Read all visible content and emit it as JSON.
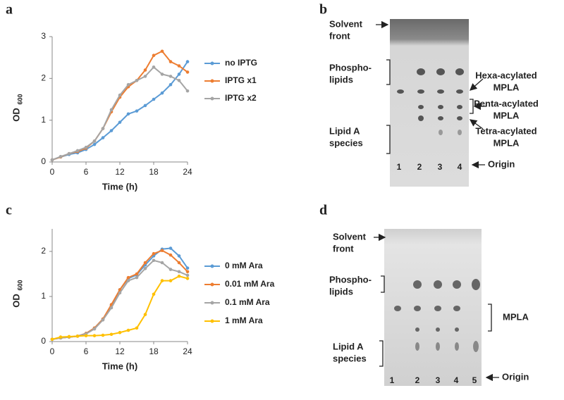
{
  "panel_labels": [
    "a",
    "b",
    "c",
    "d"
  ],
  "chart_data": [
    {
      "type": "line",
      "xlabel": "Time (h)",
      "ylabel": "OD",
      "ylabel_subscript": "600",
      "x": [
        0,
        1.5,
        3,
        4.5,
        6,
        7.5,
        9,
        10.5,
        12,
        13.5,
        15,
        16.5,
        18,
        19.5,
        21,
        22.5,
        24
      ],
      "xlim": [
        0,
        24
      ],
      "xticks": [
        0,
        6,
        12,
        18,
        24
      ],
      "ylim": [
        0,
        3
      ],
      "yticks": [
        0,
        1,
        2,
        3
      ],
      "series": [
        {
          "name": "no IPTG",
          "color": "#5b9bd5",
          "values": [
            0.05,
            0.12,
            0.18,
            0.22,
            0.3,
            0.42,
            0.58,
            0.75,
            0.95,
            1.15,
            1.22,
            1.35,
            1.5,
            1.65,
            1.85,
            2.1,
            2.4
          ]
        },
        {
          "name": "IPTG x1",
          "color": "#ed7d31",
          "values": [
            0.05,
            0.12,
            0.2,
            0.25,
            0.33,
            0.5,
            0.8,
            1.2,
            1.55,
            1.8,
            1.95,
            2.2,
            2.55,
            2.65,
            2.4,
            2.3,
            2.15
          ]
        },
        {
          "name": "IPTG x2",
          "color": "#a5a5a5",
          "values": [
            0.05,
            0.13,
            0.2,
            0.27,
            0.35,
            0.5,
            0.8,
            1.25,
            1.6,
            1.85,
            1.95,
            2.05,
            2.27,
            2.1,
            2.05,
            1.95,
            1.7
          ]
        }
      ]
    },
    {
      "type": "line",
      "xlabel": "Time (h)",
      "ylabel": "OD",
      "ylabel_subscript": "600",
      "x": [
        0,
        1.5,
        3,
        4.5,
        6,
        7.5,
        9,
        10.5,
        12,
        13.5,
        15,
        16.5,
        18,
        19.5,
        21,
        22.5,
        24
      ],
      "xlim": [
        0,
        24
      ],
      "xticks": [
        0,
        6,
        12,
        18,
        24
      ],
      "ylim": [
        0,
        2.5
      ],
      "yticks": [
        0,
        1,
        2
      ],
      "series": [
        {
          "name": "0 mM Ara",
          "color": "#5b9bd5",
          "values": [
            0.05,
            0.08,
            0.1,
            0.12,
            0.18,
            0.3,
            0.5,
            0.8,
            1.15,
            1.4,
            1.48,
            1.7,
            1.9,
            2.05,
            2.07,
            1.9,
            1.63
          ]
        },
        {
          "name": "0.01 mM Ara",
          "color": "#ed7d31",
          "values": [
            0.05,
            0.08,
            0.1,
            0.12,
            0.18,
            0.3,
            0.5,
            0.82,
            1.15,
            1.42,
            1.5,
            1.75,
            1.95,
            2.02,
            1.92,
            1.75,
            1.55
          ]
        },
        {
          "name": "0.1 mM Ara",
          "color": "#a5a5a5",
          "values": [
            0.05,
            0.08,
            0.1,
            0.12,
            0.17,
            0.28,
            0.48,
            0.75,
            1.08,
            1.35,
            1.42,
            1.62,
            1.8,
            1.75,
            1.6,
            1.55,
            1.47
          ]
        },
        {
          "name": "1 mM Ara",
          "color": "#ffc000",
          "values": [
            0.05,
            0.1,
            0.11,
            0.12,
            0.13,
            0.13,
            0.14,
            0.16,
            0.2,
            0.25,
            0.3,
            0.6,
            1.05,
            1.35,
            1.35,
            1.45,
            1.4
          ]
        }
      ]
    }
  ],
  "tlc_panels": [
    {
      "annotations": [
        [
          "Solvent",
          "front"
        ],
        [
          "Phospho-",
          "lipids"
        ],
        [
          "Lipid A",
          "species"
        ],
        [
          "Hexa-acylated",
          "MPLA"
        ],
        [
          "Penta-acylated",
          "MPLA"
        ],
        [
          "Tetra-acylated",
          "MPLA"
        ],
        [
          "Origin"
        ]
      ],
      "lanes": [
        "1",
        "2",
        "3",
        "4"
      ]
    },
    {
      "annotations": [
        [
          "Solvent",
          "front"
        ],
        [
          "Phospho-",
          "lipids"
        ],
        [
          "MPLA"
        ],
        [
          "Lipid A",
          "species"
        ],
        [
          "Origin"
        ]
      ],
      "lanes": [
        "1",
        "2",
        "3",
        "4",
        "5"
      ]
    }
  ]
}
